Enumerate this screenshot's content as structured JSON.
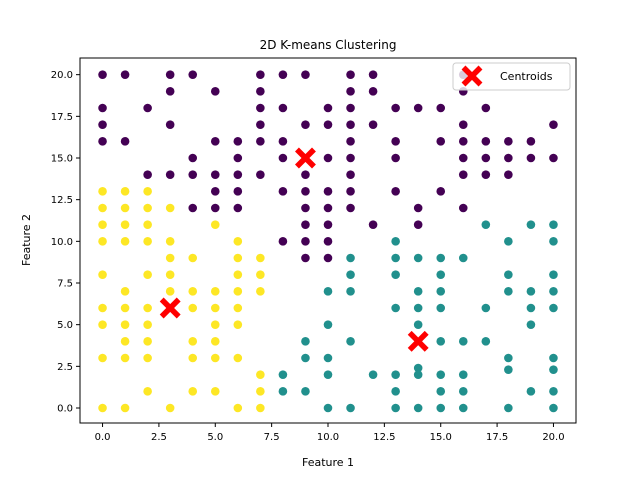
{
  "chart_data": {
    "type": "scatter",
    "title": "2D K-means Clustering",
    "xlabel": "Feature 1",
    "ylabel": "Feature 2",
    "xlim": [
      -1,
      21
    ],
    "ylim": [
      -0.9,
      21
    ],
    "xticks": [
      0.0,
      2.5,
      5.0,
      7.5,
      10.0,
      12.5,
      15.0,
      17.5,
      20.0
    ],
    "yticks": [
      0.0,
      2.5,
      5.0,
      7.5,
      10.0,
      12.5,
      15.0,
      17.5,
      20.0
    ],
    "legend_position": "top-right",
    "grid": false,
    "series": [
      {
        "color": "#440154",
        "points": [
          [
            0,
            20
          ],
          [
            1,
            20
          ],
          [
            3,
            20
          ],
          [
            4,
            20
          ],
          [
            7,
            20
          ],
          [
            8,
            20
          ],
          [
            9,
            20
          ],
          [
            11,
            20
          ],
          [
            12,
            20
          ],
          [
            16,
            20
          ],
          [
            3,
            19
          ],
          [
            5,
            19
          ],
          [
            7,
            19
          ],
          [
            11,
            19
          ],
          [
            12,
            19
          ],
          [
            16,
            19
          ],
          [
            0,
            18
          ],
          [
            2,
            18
          ],
          [
            7,
            18
          ],
          [
            8,
            18
          ],
          [
            10,
            18
          ],
          [
            11,
            18
          ],
          [
            13,
            18
          ],
          [
            14,
            18
          ],
          [
            15,
            18
          ],
          [
            17,
            18
          ],
          [
            0,
            17
          ],
          [
            3,
            17
          ],
          [
            7,
            17
          ],
          [
            9,
            17
          ],
          [
            10,
            17
          ],
          [
            11,
            17
          ],
          [
            12,
            17
          ],
          [
            16,
            17
          ],
          [
            20,
            17
          ],
          [
            0,
            16
          ],
          [
            1,
            16
          ],
          [
            5,
            16
          ],
          [
            6,
            16
          ],
          [
            7,
            16
          ],
          [
            8,
            16
          ],
          [
            11,
            16
          ],
          [
            13,
            16
          ],
          [
            15,
            16
          ],
          [
            16,
            16
          ],
          [
            17,
            16
          ],
          [
            18,
            16
          ],
          [
            19,
            16
          ],
          [
            4,
            15
          ],
          [
            6,
            15
          ],
          [
            8,
            15
          ],
          [
            10,
            15
          ],
          [
            11,
            15
          ],
          [
            13,
            15
          ],
          [
            16,
            15
          ],
          [
            17,
            15
          ],
          [
            18,
            15
          ],
          [
            19,
            15
          ],
          [
            20,
            15
          ],
          [
            2,
            14
          ],
          [
            3,
            14
          ],
          [
            4,
            14
          ],
          [
            5,
            14
          ],
          [
            6,
            14
          ],
          [
            7,
            14
          ],
          [
            9,
            14
          ],
          [
            11,
            14
          ],
          [
            16,
            14
          ],
          [
            17,
            14
          ],
          [
            18,
            14
          ],
          [
            5,
            13
          ],
          [
            6,
            13
          ],
          [
            8,
            13
          ],
          [
            9,
            13
          ],
          [
            10,
            13
          ],
          [
            11,
            13
          ],
          [
            13,
            13
          ],
          [
            15,
            13
          ],
          [
            4,
            12
          ],
          [
            5,
            12
          ],
          [
            6,
            12
          ],
          [
            9,
            12
          ],
          [
            10,
            12
          ],
          [
            11,
            12
          ],
          [
            14,
            12
          ],
          [
            16,
            12
          ],
          [
            9,
            11
          ],
          [
            10,
            11
          ],
          [
            12,
            11
          ],
          [
            14,
            11
          ],
          [
            8,
            10
          ],
          [
            9,
            10
          ],
          [
            10,
            10
          ],
          [
            9,
            9
          ],
          [
            10,
            9
          ]
        ]
      },
      {
        "color": "#21908d",
        "points": [
          [
            17,
            11
          ],
          [
            19,
            11
          ],
          [
            20,
            11
          ],
          [
            13,
            10
          ],
          [
            18,
            10
          ],
          [
            20,
            10
          ],
          [
            11,
            9
          ],
          [
            13,
            9
          ],
          [
            14,
            9
          ],
          [
            15,
            9
          ],
          [
            16,
            9
          ],
          [
            11,
            8
          ],
          [
            13,
            8
          ],
          [
            15,
            8
          ],
          [
            18,
            8
          ],
          [
            20,
            8
          ],
          [
            10,
            7
          ],
          [
            11,
            7
          ],
          [
            14,
            7
          ],
          [
            15,
            7
          ],
          [
            18,
            7
          ],
          [
            19,
            7
          ],
          [
            20,
            7
          ],
          [
            13,
            6
          ],
          [
            14,
            6
          ],
          [
            15,
            6
          ],
          [
            17,
            6
          ],
          [
            19,
            6
          ],
          [
            20,
            6
          ],
          [
            10,
            5
          ],
          [
            14,
            5
          ],
          [
            19,
            5
          ],
          [
            9,
            4
          ],
          [
            11,
            4
          ],
          [
            15,
            4
          ],
          [
            16,
            4
          ],
          [
            17,
            4
          ],
          [
            9,
            3
          ],
          [
            10,
            3
          ],
          [
            18,
            3
          ],
          [
            20,
            3
          ],
          [
            14,
            2.4
          ],
          [
            18,
            2.3
          ],
          [
            20,
            2.3
          ],
          [
            8,
            2
          ],
          [
            10,
            2
          ],
          [
            12,
            2
          ],
          [
            13,
            2
          ],
          [
            14,
            2
          ],
          [
            15,
            2
          ],
          [
            16,
            2
          ],
          [
            8,
            1
          ],
          [
            9,
            1
          ],
          [
            13,
            1
          ],
          [
            15,
            1
          ],
          [
            16,
            1
          ],
          [
            19,
            1
          ],
          [
            20,
            1
          ],
          [
            10,
            0
          ],
          [
            11,
            0
          ],
          [
            13,
            0
          ],
          [
            14,
            0
          ],
          [
            15,
            0
          ],
          [
            16,
            0
          ],
          [
            18,
            0
          ],
          [
            20,
            0
          ]
        ]
      },
      {
        "color": "#fde725",
        "points": [
          [
            0,
            13
          ],
          [
            1,
            13
          ],
          [
            2,
            13
          ],
          [
            0,
            12
          ],
          [
            1,
            12
          ],
          [
            2,
            12
          ],
          [
            3,
            12
          ],
          [
            0,
            11
          ],
          [
            1,
            11
          ],
          [
            2,
            11
          ],
          [
            5,
            11
          ],
          [
            0,
            10
          ],
          [
            1,
            10
          ],
          [
            2,
            10
          ],
          [
            3,
            10
          ],
          [
            6,
            10
          ],
          [
            3,
            9
          ],
          [
            4,
            9
          ],
          [
            6,
            9
          ],
          [
            7,
            9
          ],
          [
            0,
            8
          ],
          [
            2,
            8
          ],
          [
            3,
            8
          ],
          [
            6,
            8
          ],
          [
            7,
            8
          ],
          [
            1,
            7
          ],
          [
            3,
            7
          ],
          [
            4,
            7
          ],
          [
            5,
            7
          ],
          [
            6,
            7
          ],
          [
            7,
            7
          ],
          [
            0,
            6
          ],
          [
            1,
            6
          ],
          [
            2,
            6
          ],
          [
            4,
            6
          ],
          [
            5,
            6
          ],
          [
            6,
            6
          ],
          [
            0,
            5
          ],
          [
            1,
            5
          ],
          [
            2,
            5
          ],
          [
            5,
            5
          ],
          [
            6,
            5
          ],
          [
            1,
            4
          ],
          [
            2,
            4
          ],
          [
            4,
            4
          ],
          [
            5,
            4
          ],
          [
            0,
            3
          ],
          [
            1,
            3
          ],
          [
            2,
            3
          ],
          [
            4,
            3
          ],
          [
            5,
            3
          ],
          [
            6,
            3
          ],
          [
            7,
            2
          ],
          [
            2,
            1
          ],
          [
            4,
            1
          ],
          [
            5,
            1
          ],
          [
            7,
            1
          ],
          [
            0,
            0
          ],
          [
            1,
            0
          ],
          [
            3,
            0
          ],
          [
            6,
            0
          ],
          [
            7,
            0
          ]
        ]
      }
    ],
    "centroids": {
      "name": "Centroids",
      "color": "#ff0000",
      "points": [
        [
          9,
          15
        ],
        [
          3,
          6
        ],
        [
          14,
          4
        ]
      ]
    }
  }
}
